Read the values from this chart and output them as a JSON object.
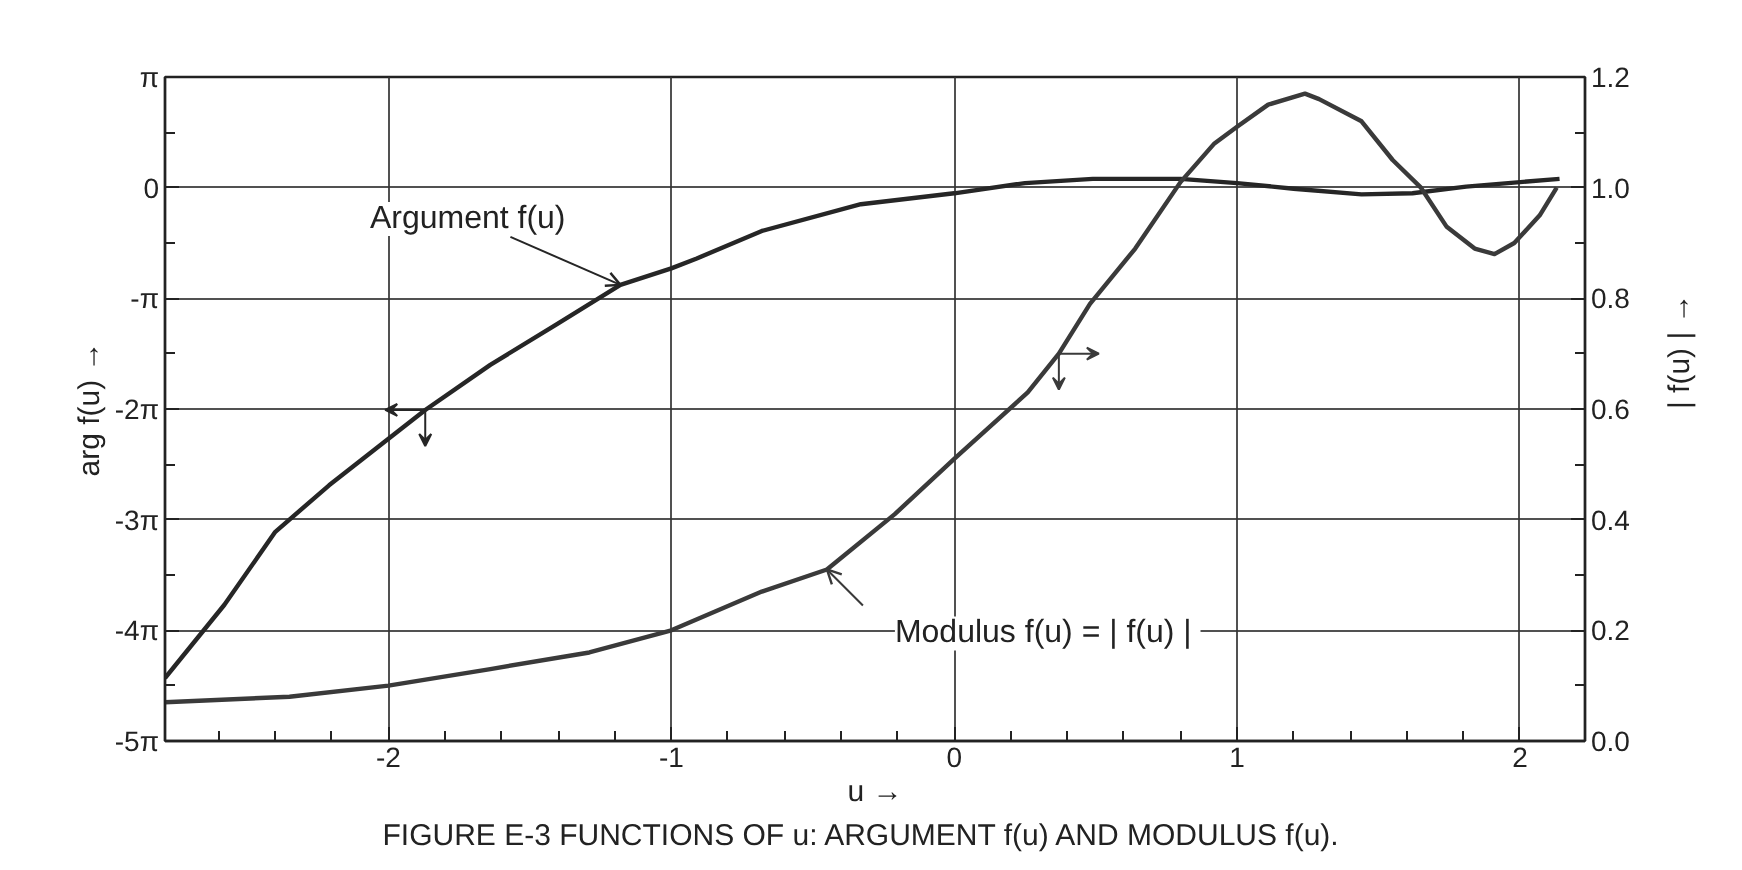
{
  "chart_data": {
    "type": "line",
    "title": "FIGURE E-3  FUNCTIONS OF  u: ARGUMENT  f(u) AND MODULUS f(u).",
    "xlabel": "u →",
    "ylabel": "arg f(u) →",
    "y2label": "| f(u) | →",
    "xlim": [
      -2.79,
      2.23
    ],
    "xticks": [
      {
        "value": -2.6,
        "label": null
      },
      {
        "value": -2.4,
        "label": null
      },
      {
        "value": -2.2,
        "label": null
      },
      -2,
      {
        "value": -1.8,
        "label": null
      },
      {
        "value": -1.6,
        "label": null
      },
      {
        "value": -1.4,
        "label": null
      },
      {
        "value": -1.2,
        "label": null
      },
      -1,
      {
        "value": -0.8,
        "label": null
      },
      {
        "value": -0.6,
        "label": null
      },
      {
        "value": -0.4,
        "label": null
      },
      {
        "value": -0.2,
        "label": null
      },
      0,
      {
        "value": 0.2,
        "label": null
      },
      {
        "value": 0.4,
        "label": null
      },
      {
        "value": 0.6,
        "label": null
      },
      {
        "value": 0.8,
        "label": null
      },
      1,
      {
        "value": 1.2,
        "label": null
      },
      {
        "value": 1.4,
        "label": null
      },
      {
        "value": 1.6,
        "label": null
      },
      {
        "value": 1.8,
        "label": null
      },
      2
    ],
    "ylim": [
      -15.70796,
      3.14159
    ],
    "yticks": [
      {
        "value": 3.14159,
        "label": "π"
      },
      {
        "value": 1.5708,
        "label": null
      },
      0,
      {
        "value": -1.5708,
        "label": null
      },
      {
        "value": -3.14159,
        "label": "-π"
      },
      {
        "value": -4.71239,
        "label": null
      },
      {
        "value": -6.28319,
        "label": "-2π"
      },
      {
        "value": -7.85398,
        "label": null
      },
      {
        "value": -9.42478,
        "label": "-3π"
      },
      {
        "value": -10.99557,
        "label": null
      },
      {
        "value": -12.56637,
        "label": "-4π"
      },
      {
        "value": -14.13717,
        "label": null
      },
      {
        "value": -15.70796,
        "label": "-5π"
      }
    ],
    "y2lim": [
      0,
      1.2
    ],
    "y2ticks": [
      {
        "value": 0,
        "label": "0.0"
      },
      {
        "value": 0.1,
        "label": null
      },
      0.2,
      {
        "value": 0.3,
        "label": null
      },
      0.4,
      {
        "value": 0.5,
        "label": null
      },
      0.6,
      {
        "value": 0.7,
        "label": null
      },
      0.8,
      {
        "value": 0.9,
        "label": null
      },
      {
        "value": 1.0,
        "label": "1.0"
      },
      {
        "value": 1.1,
        "label": null
      },
      1.2
    ],
    "grid": true,
    "series": [
      {
        "name": "Argument  f(u)",
        "color": "#262626",
        "x": [
          -2.79,
          -2.58,
          -2.4,
          -2.21,
          -2.0,
          -1.87,
          -1.64,
          -1.41,
          -1.18,
          -1.0,
          -0.91,
          -0.68,
          -0.33,
          0.0,
          0.25,
          0.49,
          0.8,
          1.0,
          1.2,
          1.44,
          1.62,
          1.81,
          2.14
        ],
        "values": [
          -13.92,
          -11.84,
          -9.77,
          -8.45,
          -7.13,
          -6.31,
          -5.03,
          -3.9,
          -2.76,
          -2.29,
          -2.01,
          -1.23,
          -0.47,
          -0.16,
          0.13,
          0.25,
          0.25,
          0.13,
          -0.03,
          -0.19,
          -0.16,
          0.03,
          0.25
        ]
      },
      {
        "name": "Modulus  f(u) = | f(u) |",
        "color": "#3a3a3a",
        "axis": "y2",
        "x": [
          -2.79,
          -2.35,
          -2.0,
          -1.64,
          -1.29,
          -1.0,
          -0.68,
          -0.45,
          -0.21,
          0.0,
          0.26,
          0.37,
          0.48,
          0.64,
          0.8,
          0.92,
          1.0,
          1.11,
          1.24,
          1.29,
          1.44,
          1.55,
          1.65,
          1.74,
          1.84,
          1.91,
          1.98,
          2.07,
          2.13
        ],
        "values": [
          0.07,
          0.08,
          0.1,
          0.13,
          0.16,
          0.2,
          0.27,
          0.31,
          0.41,
          0.51,
          0.63,
          0.7,
          0.79,
          0.89,
          1.01,
          1.08,
          1.11,
          1.15,
          1.17,
          1.16,
          1.12,
          1.05,
          1.0,
          0.93,
          0.89,
          0.88,
          0.9,
          0.95,
          1.0
        ]
      }
    ]
  }
}
